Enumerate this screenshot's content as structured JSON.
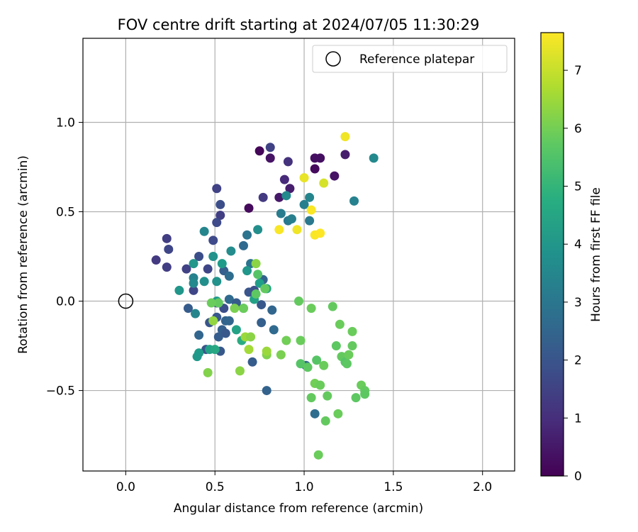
{
  "chart_data": {
    "type": "scatter",
    "title": "FOV centre drift starting at 2024/07/05 11:30:29",
    "xlabel": "Angular distance from reference (arcmin)",
    "ylabel": "Rotation from reference (arcmin)",
    "xlim": [
      -0.24,
      2.18
    ],
    "ylim": [
      -0.95,
      1.47
    ],
    "xticks": [
      0.0,
      0.5,
      1.0,
      1.5,
      2.0
    ],
    "xtick_labels": [
      "0.0",
      "0.5",
      "1.0",
      "1.5",
      "2.0"
    ],
    "yticks": [
      -0.5,
      0.0,
      0.5,
      1.0
    ],
    "ytick_labels": [
      "−0.5",
      "0.0",
      "0.5",
      "1.0"
    ],
    "grid": true,
    "legend": {
      "position": "top-right",
      "entries": [
        "Reference platepar"
      ]
    },
    "reference_point": {
      "x": 0.0,
      "y": 0.0
    },
    "colorbar": {
      "label": "Hours from first FF file",
      "colormap": "viridis",
      "range": [
        0,
        7.65
      ],
      "ticks": [
        0,
        1,
        2,
        3,
        4,
        5,
        6,
        7
      ],
      "tick_labels": [
        "0",
        "1",
        "2",
        "3",
        "4",
        "5",
        "6",
        "7"
      ]
    },
    "points": [
      {
        "x": 0.75,
        "y": 0.84,
        "h": 0.1
      },
      {
        "x": 0.69,
        "y": 0.52,
        "h": 0.2
      },
      {
        "x": 1.06,
        "y": 0.8,
        "h": 0.3
      },
      {
        "x": 1.09,
        "y": 0.8,
        "h": 0.3
      },
      {
        "x": 1.06,
        "y": 0.74,
        "h": 0.2
      },
      {
        "x": 1.17,
        "y": 0.7,
        "h": 0.4
      },
      {
        "x": 1.23,
        "y": 0.82,
        "h": 0.6
      },
      {
        "x": 0.81,
        "y": 0.8,
        "h": 0.4
      },
      {
        "x": 0.86,
        "y": 0.58,
        "h": 0.5
      },
      {
        "x": 0.92,
        "y": 0.63,
        "h": 0.6
      },
      {
        "x": 0.89,
        "y": 0.68,
        "h": 0.9
      },
      {
        "x": 0.91,
        "y": 0.78,
        "h": 1.1
      },
      {
        "x": 0.81,
        "y": 0.86,
        "h": 1.5
      },
      {
        "x": 0.77,
        "y": 0.58,
        "h": 1.3
      },
      {
        "x": 0.51,
        "y": 0.63,
        "h": 1.5
      },
      {
        "x": 0.53,
        "y": 0.54,
        "h": 1.8
      },
      {
        "x": 0.53,
        "y": 0.48,
        "h": 1.4
      },
      {
        "x": 0.51,
        "y": 0.44,
        "h": 1.7
      },
      {
        "x": 0.49,
        "y": 0.34,
        "h": 1.7
      },
      {
        "x": 0.23,
        "y": 0.35,
        "h": 1.4
      },
      {
        "x": 0.24,
        "y": 0.29,
        "h": 1.6
      },
      {
        "x": 0.17,
        "y": 0.23,
        "h": 1.3
      },
      {
        "x": 0.23,
        "y": 0.19,
        "h": 1.4
      },
      {
        "x": 0.34,
        "y": 0.18,
        "h": 1.5
      },
      {
        "x": 0.41,
        "y": 0.25,
        "h": 1.8
      },
      {
        "x": 0.46,
        "y": 0.18,
        "h": 1.6
      },
      {
        "x": 0.38,
        "y": 0.06,
        "h": 1.6
      },
      {
        "x": 0.35,
        "y": -0.04,
        "h": 2.2
      },
      {
        "x": 0.51,
        "y": -0.01,
        "h": 1.7
      },
      {
        "x": 0.55,
        "y": -0.04,
        "h": 1.8
      },
      {
        "x": 0.47,
        "y": -0.12,
        "h": 2.0
      },
      {
        "x": 0.51,
        "y": -0.09,
        "h": 2.1
      },
      {
        "x": 0.56,
        "y": -0.11,
        "h": 2.4
      },
      {
        "x": 0.52,
        "y": -0.2,
        "h": 2.2
      },
      {
        "x": 0.54,
        "y": -0.16,
        "h": 2.3
      },
      {
        "x": 0.56,
        "y": -0.18,
        "h": 2.1
      },
      {
        "x": 0.58,
        "y": -0.11,
        "h": 2.5
      },
      {
        "x": 0.45,
        "y": -0.27,
        "h": 2.0
      },
      {
        "x": 0.53,
        "y": -0.28,
        "h": 2.1
      },
      {
        "x": 0.41,
        "y": -0.19,
        "h": 2.5
      },
      {
        "x": 0.58,
        "y": 0.01,
        "h": 2.6
      },
      {
        "x": 0.62,
        "y": -0.01,
        "h": 2.2
      },
      {
        "x": 0.55,
        "y": 0.17,
        "h": 2.3
      },
      {
        "x": 0.58,
        "y": 0.14,
        "h": 2.7
      },
      {
        "x": 0.66,
        "y": 0.31,
        "h": 2.6
      },
      {
        "x": 0.68,
        "y": 0.37,
        "h": 2.9
      },
      {
        "x": 0.7,
        "y": 0.21,
        "h": 2.9
      },
      {
        "x": 0.69,
        "y": 0.05,
        "h": 2.0
      },
      {
        "x": 0.72,
        "y": 0.06,
        "h": 1.9
      },
      {
        "x": 0.76,
        "y": -0.02,
        "h": 2.1
      },
      {
        "x": 0.76,
        "y": -0.12,
        "h": 2.3
      },
      {
        "x": 0.77,
        "y": 0.12,
        "h": 2.4
      },
      {
        "x": 0.82,
        "y": -0.05,
        "h": 2.5
      },
      {
        "x": 0.83,
        "y": -0.16,
        "h": 2.6
      },
      {
        "x": 0.71,
        "y": -0.34,
        "h": 2.2
      },
      {
        "x": 0.79,
        "y": -0.5,
        "h": 2.4
      },
      {
        "x": 1.06,
        "y": -0.63,
        "h": 2.7
      },
      {
        "x": 1.01,
        "y": -0.36,
        "h": 2.5
      },
      {
        "x": 0.87,
        "y": 0.49,
        "h": 3.2
      },
      {
        "x": 0.91,
        "y": 0.45,
        "h": 3.1
      },
      {
        "x": 0.93,
        "y": 0.46,
        "h": 3.3
      },
      {
        "x": 0.9,
        "y": 0.59,
        "h": 3.6
      },
      {
        "x": 1.0,
        "y": 0.54,
        "h": 3.3
      },
      {
        "x": 1.03,
        "y": 0.58,
        "h": 3.5
      },
      {
        "x": 1.03,
        "y": 0.45,
        "h": 3.1
      },
      {
        "x": 1.28,
        "y": 0.56,
        "h": 3.4
      },
      {
        "x": 1.39,
        "y": 0.8,
        "h": 3.6
      },
      {
        "x": 0.74,
        "y": 0.4,
        "h": 3.8
      },
      {
        "x": 0.44,
        "y": 0.39,
        "h": 3.5
      },
      {
        "x": 0.59,
        "y": 0.28,
        "h": 3.7
      },
      {
        "x": 0.49,
        "y": 0.25,
        "h": 3.9
      },
      {
        "x": 0.38,
        "y": 0.21,
        "h": 4.0
      },
      {
        "x": 0.38,
        "y": 0.13,
        "h": 3.4
      },
      {
        "x": 0.38,
        "y": 0.1,
        "h": 3.6
      },
      {
        "x": 0.39,
        "y": -0.07,
        "h": 3.5
      },
      {
        "x": 0.3,
        "y": 0.06,
        "h": 4.0
      },
      {
        "x": 0.44,
        "y": 0.11,
        "h": 3.8
      },
      {
        "x": 0.51,
        "y": 0.11,
        "h": 3.9
      },
      {
        "x": 0.51,
        "y": 0.0,
        "h": 4.1
      },
      {
        "x": 0.54,
        "y": 0.21,
        "h": 4.2
      },
      {
        "x": 0.68,
        "y": 0.17,
        "h": 4.0
      },
      {
        "x": 0.75,
        "y": 0.1,
        "h": 4.3
      },
      {
        "x": 0.79,
        "y": 0.07,
        "h": 4.5
      },
      {
        "x": 0.72,
        "y": 0.01,
        "h": 4.4
      },
      {
        "x": 0.66,
        "y": -0.04,
        "h": 4.6
      },
      {
        "x": 0.62,
        "y": -0.16,
        "h": 4.4
      },
      {
        "x": 0.65,
        "y": -0.22,
        "h": 4.7
      },
      {
        "x": 0.41,
        "y": -0.29,
        "h": 4.2
      },
      {
        "x": 0.4,
        "y": -0.31,
        "h": 4.1
      },
      {
        "x": 0.47,
        "y": -0.27,
        "h": 4.4
      },
      {
        "x": 0.5,
        "y": -0.27,
        "h": 4.6
      },
      {
        "x": 0.74,
        "y": 0.15,
        "h": 5.6
      },
      {
        "x": 0.73,
        "y": 0.21,
        "h": 6.3
      },
      {
        "x": 0.78,
        "y": 0.07,
        "h": 5.8
      },
      {
        "x": 0.73,
        "y": 0.04,
        "h": 5.7
      },
      {
        "x": 0.66,
        "y": -0.04,
        "h": 5.9
      },
      {
        "x": 0.61,
        "y": -0.04,
        "h": 6.1
      },
      {
        "x": 0.52,
        "y": -0.01,
        "h": 5.8
      },
      {
        "x": 0.48,
        "y": -0.01,
        "h": 5.9
      },
      {
        "x": 0.49,
        "y": -0.11,
        "h": 6.4
      },
      {
        "x": 0.46,
        "y": -0.4,
        "h": 6.2
      },
      {
        "x": 0.64,
        "y": -0.39,
        "h": 6.3
      },
      {
        "x": 0.67,
        "y": -0.2,
        "h": 6.5
      },
      {
        "x": 0.7,
        "y": -0.2,
        "h": 6.3
      },
      {
        "x": 0.69,
        "y": -0.27,
        "h": 6.6
      },
      {
        "x": 0.79,
        "y": -0.3,
        "h": 6.2
      },
      {
        "x": 0.79,
        "y": -0.28,
        "h": 6.5
      },
      {
        "x": 0.87,
        "y": -0.3,
        "h": 6.1
      },
      {
        "x": 0.9,
        "y": -0.22,
        "h": 6.0
      },
      {
        "x": 0.98,
        "y": -0.22,
        "h": 5.9
      },
      {
        "x": 0.97,
        "y": 0.0,
        "h": 5.8
      },
      {
        "x": 1.04,
        "y": -0.04,
        "h": 5.9
      },
      {
        "x": 0.98,
        "y": -0.35,
        "h": 5.6
      },
      {
        "x": 1.02,
        "y": -0.37,
        "h": 5.7
      },
      {
        "x": 1.06,
        "y": -0.46,
        "h": 6.0
      },
      {
        "x": 1.04,
        "y": -0.54,
        "h": 5.8
      },
      {
        "x": 1.09,
        "y": -0.47,
        "h": 5.9
      },
      {
        "x": 1.07,
        "y": -0.33,
        "h": 5.6
      },
      {
        "x": 1.11,
        "y": -0.36,
        "h": 5.9
      },
      {
        "x": 1.13,
        "y": -0.53,
        "h": 5.8
      },
      {
        "x": 1.16,
        "y": -0.03,
        "h": 5.8
      },
      {
        "x": 1.18,
        "y": -0.25,
        "h": 5.7
      },
      {
        "x": 1.2,
        "y": -0.13,
        "h": 5.9
      },
      {
        "x": 1.21,
        "y": -0.31,
        "h": 5.8
      },
      {
        "x": 1.23,
        "y": -0.34,
        "h": 5.6
      },
      {
        "x": 1.24,
        "y": -0.35,
        "h": 5.7
      },
      {
        "x": 1.25,
        "y": -0.3,
        "h": 5.9
      },
      {
        "x": 1.27,
        "y": -0.17,
        "h": 5.9
      },
      {
        "x": 1.27,
        "y": -0.25,
        "h": 5.8
      },
      {
        "x": 1.19,
        "y": -0.63,
        "h": 5.9
      },
      {
        "x": 1.12,
        "y": -0.67,
        "h": 5.8
      },
      {
        "x": 1.08,
        "y": -0.86,
        "h": 5.9
      },
      {
        "x": 1.29,
        "y": -0.54,
        "h": 5.7
      },
      {
        "x": 1.32,
        "y": -0.47,
        "h": 5.9
      },
      {
        "x": 1.34,
        "y": -0.5,
        "h": 5.8
      },
      {
        "x": 1.34,
        "y": -0.52,
        "h": 5.7
      },
      {
        "x": 0.86,
        "y": 0.4,
        "h": 7.6
      },
      {
        "x": 0.96,
        "y": 0.4,
        "h": 7.5
      },
      {
        "x": 1.06,
        "y": 0.37,
        "h": 7.6
      },
      {
        "x": 1.09,
        "y": 0.38,
        "h": 7.7
      },
      {
        "x": 1.04,
        "y": 0.51,
        "h": 7.6
      },
      {
        "x": 1.0,
        "y": 0.69,
        "h": 7.4
      },
      {
        "x": 1.11,
        "y": 0.66,
        "h": 7.2
      },
      {
        "x": 1.23,
        "y": 0.92,
        "h": 7.5
      }
    ]
  }
}
